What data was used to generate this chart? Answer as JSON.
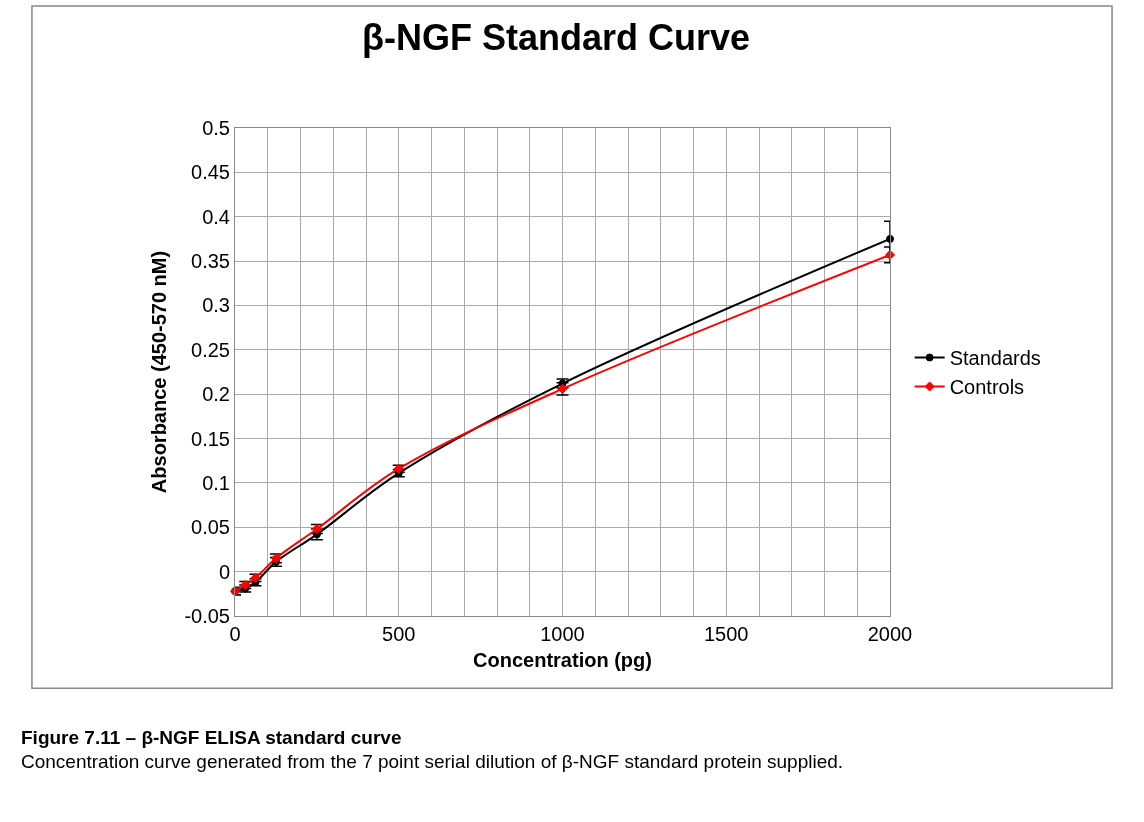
{
  "chart_data": {
    "type": "line",
    "title": "β-NGF Standard Curve",
    "xlabel": "Concentration (pg)",
    "ylabel": "Absorbance (450-570 nM)",
    "x": [
      0,
      31.25,
      62.5,
      125,
      250,
      500,
      1000,
      2000
    ],
    "series": [
      {
        "name": "Standards",
        "color": "#000000",
        "marker": "circle",
        "values": [
          -0.022,
          -0.019,
          -0.012,
          0.011,
          0.042,
          0.111,
          0.212,
          0.375
        ],
        "errors": [
          0.004,
          0.004,
          0.004,
          0.005,
          0.006,
          0.004,
          0.005,
          0.02
        ]
      },
      {
        "name": "Controls",
        "color": "#ff0000",
        "marker": "diamond",
        "values": [
          -0.022,
          -0.015,
          -0.007,
          0.015,
          0.048,
          0.116,
          0.206,
          0.357
        ],
        "errors": [
          0.004,
          0.004,
          0.004,
          0.005,
          0.005,
          0.004,
          0.007,
          0.009
        ]
      }
    ],
    "xlim": [
      0,
      2000
    ],
    "xticks": [
      0,
      {
        "value": 100,
        "label": null
      },
      {
        "value": 200,
        "label": null
      },
      {
        "value": 300,
        "label": null
      },
      {
        "value": 400,
        "label": null
      },
      500,
      {
        "value": 600,
        "label": null
      },
      {
        "value": 700,
        "label": null
      },
      {
        "value": 800,
        "label": null
      },
      {
        "value": 900,
        "label": null
      },
      1000,
      {
        "value": 1100,
        "label": null
      },
      {
        "value": 1200,
        "label": null
      },
      {
        "value": 1300,
        "label": null
      },
      {
        "value": 1400,
        "label": null
      },
      1500,
      {
        "value": 1600,
        "label": null
      },
      {
        "value": 1700,
        "label": null
      },
      {
        "value": 1800,
        "label": null
      },
      {
        "value": 1900,
        "label": null
      },
      2000
    ],
    "ylim": [
      -0.05,
      0.5
    ],
    "yticks": [
      -0.05,
      0,
      0.05,
      0.1,
      0.15,
      0.2,
      0.25,
      0.3,
      0.35,
      0.4,
      0.45,
      0.5
    ],
    "grid": true,
    "legend": "right",
    "line_style": "solid",
    "annotations": [
      "Figure 7.11 – β-NGF ELISA standard curve",
      "Concentration curve generated from the 7 point serial dilution of β-NGF standard protein supplied."
    ]
  }
}
